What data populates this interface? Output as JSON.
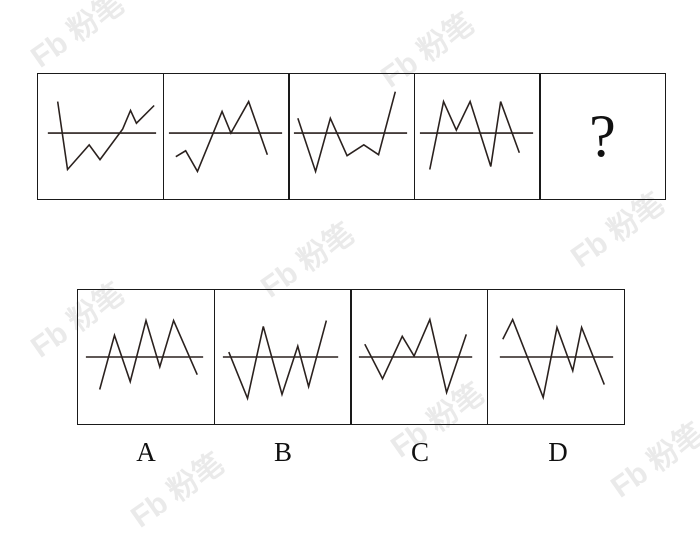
{
  "watermark": {
    "text": "粉笔",
    "logo": "fb-logo"
  },
  "question_row": {
    "panels": [
      {
        "id": "q1",
        "icon": "zigzag-figure"
      },
      {
        "id": "q2",
        "icon": "zigzag-figure"
      },
      {
        "id": "q3",
        "icon": "zigzag-figure"
      },
      {
        "id": "q4",
        "icon": "zigzag-figure"
      },
      {
        "id": "q5",
        "label": "?"
      }
    ]
  },
  "options": [
    {
      "label": "A",
      "icon": "zigzag-figure"
    },
    {
      "label": "B",
      "icon": "zigzag-figure"
    },
    {
      "label": "C",
      "icon": "zigzag-figure"
    },
    {
      "label": "D",
      "icon": "zigzag-figure"
    }
  ],
  "colors": {
    "ink": "#2a211e",
    "border": "#1a1a1a",
    "watermark": "#d9d9d9"
  }
}
